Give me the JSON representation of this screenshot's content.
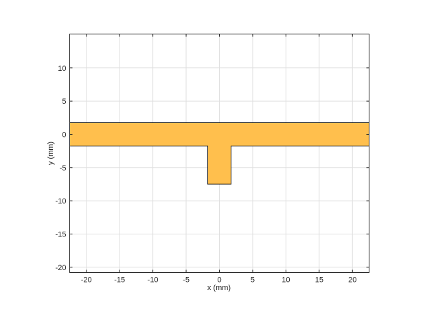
{
  "chart_data": {
    "type": "area",
    "title": "",
    "xlabel": "x (mm)",
    "ylabel": "y (mm)",
    "xlim": [
      -22.5,
      22.5
    ],
    "ylim": [
      -20.8,
      15.1
    ],
    "xticks": [
      -20,
      -15,
      -10,
      -5,
      0,
      5,
      10,
      15,
      20
    ],
    "yticks": [
      -20,
      -15,
      -10,
      -5,
      0,
      5,
      10
    ],
    "grid": true,
    "fill_color": "#FFBF4D",
    "edge_color": "#1A1A1A",
    "shape": {
      "x": [
        -22.5,
        22.5,
        22.5,
        1.75,
        1.75,
        -1.75,
        -1.75,
        -22.5
      ],
      "y": [
        1.75,
        1.75,
        -1.75,
        -1.75,
        -7.5,
        -7.5,
        -1.75,
        -1.75
      ]
    }
  }
}
